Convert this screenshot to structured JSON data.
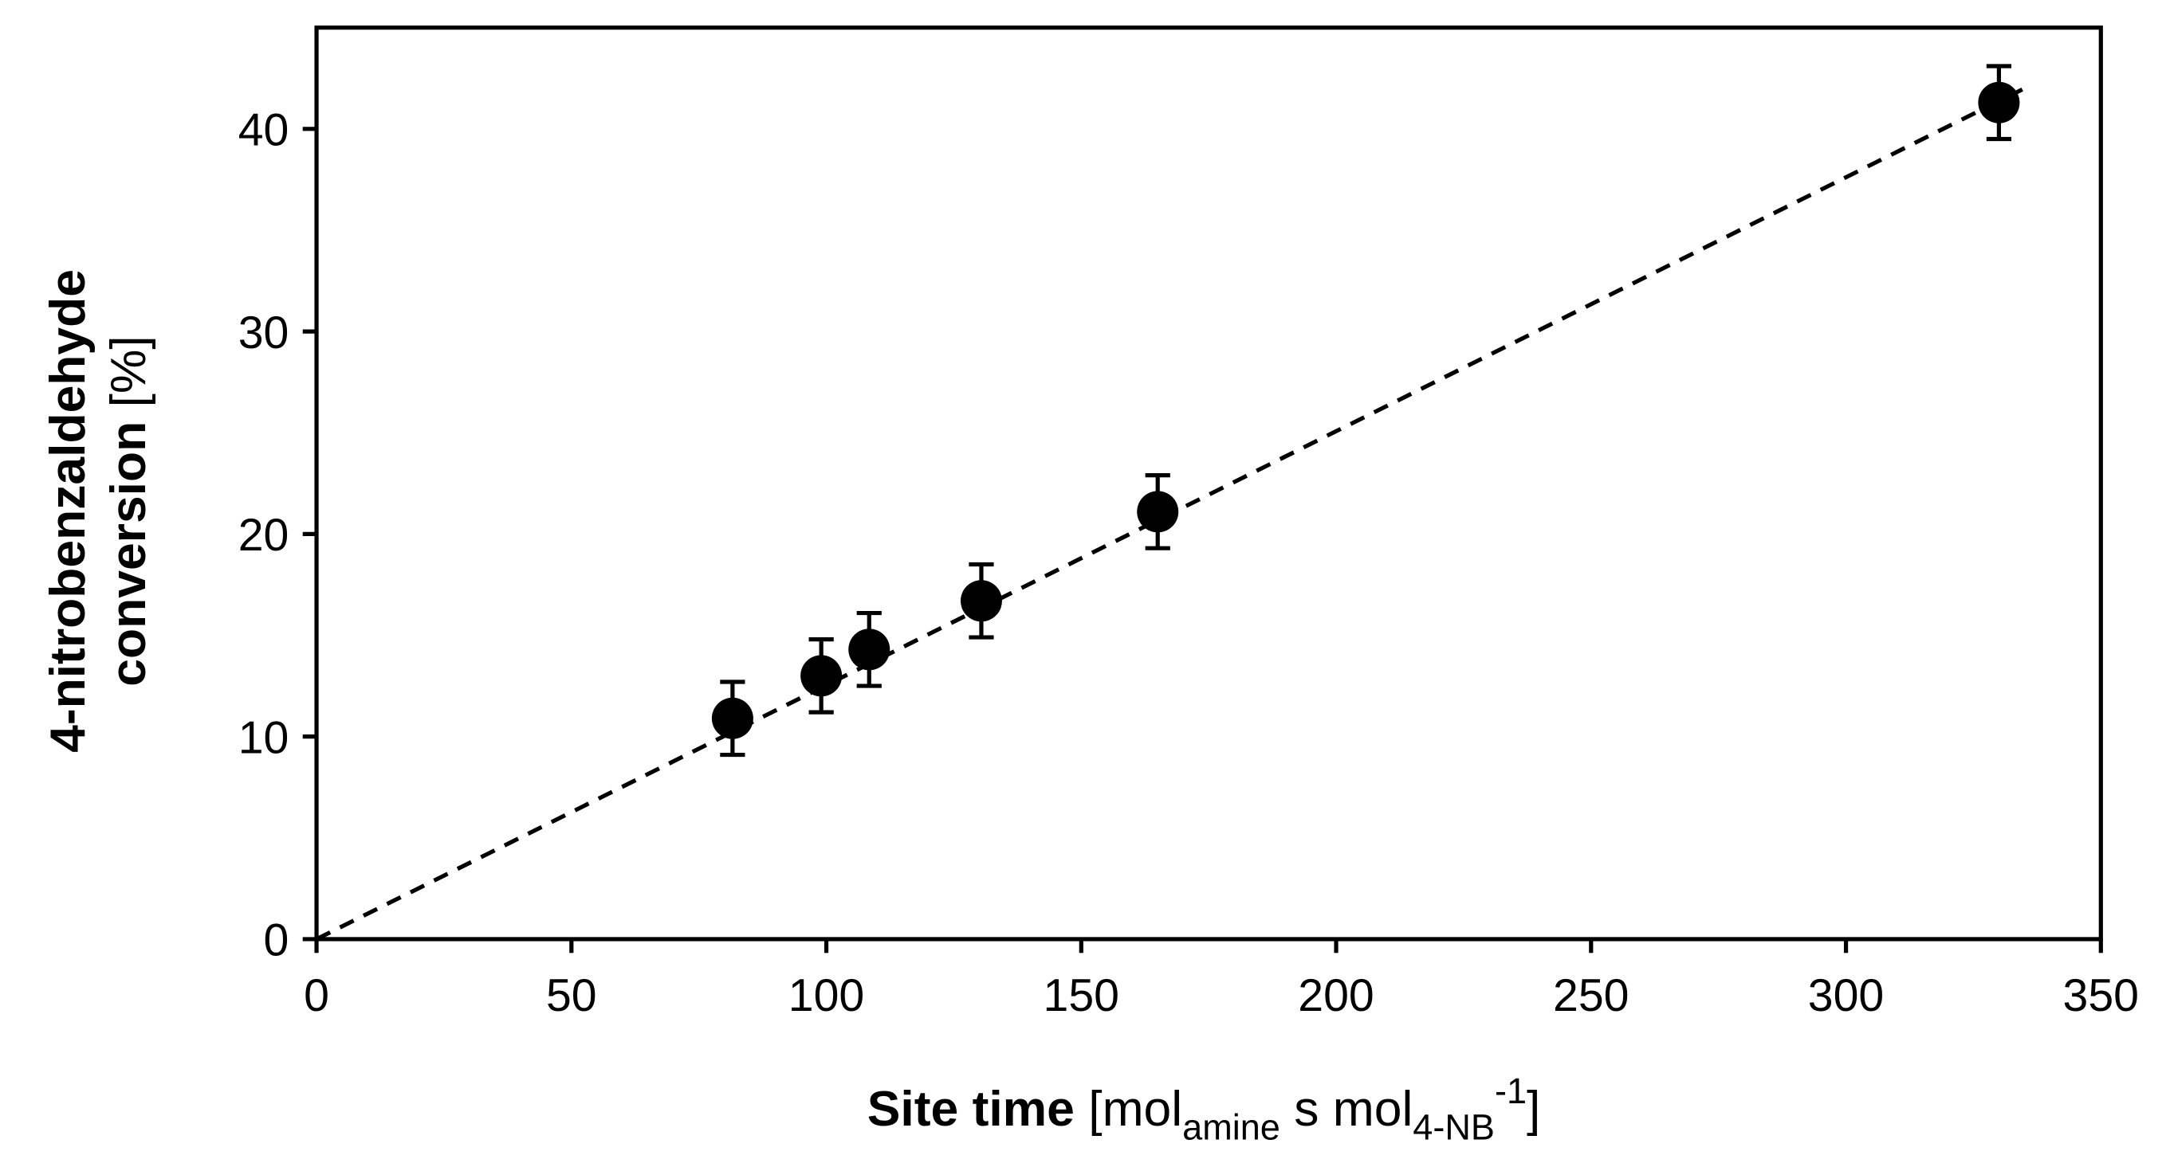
{
  "chart_data": {
    "type": "scatter",
    "title": "",
    "xlabel": {
      "bold": "Site time",
      "rest": "[mol",
      "sub1": "amine",
      "mid": " s mol",
      "sub2": "4-NB",
      "sup": "-1",
      "end": "]"
    },
    "ylabel": {
      "line1": "4-nitrobenzaldehyde",
      "line2_bold": "conversion",
      "line2_rest": " [%]"
    },
    "xlim": [
      0,
      350
    ],
    "ylim": [
      0,
      45
    ],
    "xticks": [
      0,
      50,
      100,
      150,
      200,
      250,
      300,
      350
    ],
    "yticks": [
      0,
      10,
      20,
      30,
      40
    ],
    "grid": false,
    "legend": null,
    "series": [
      {
        "name": "data",
        "marker": "filled-circle",
        "color": "#000000",
        "x": [
          81.6,
          99.0,
          108.4,
          130.4,
          165.0,
          330.0
        ],
        "y": [
          10.9,
          13.0,
          14.3,
          16.7,
          21.1,
          41.3
        ],
        "yerr": [
          1.8,
          1.8,
          1.8,
          1.8,
          1.8,
          1.8
        ]
      },
      {
        "name": "linear-fit",
        "style": "dashed",
        "color": "#000000",
        "x": [
          0,
          335
        ],
        "y": [
          0,
          42.0
        ]
      }
    ]
  }
}
